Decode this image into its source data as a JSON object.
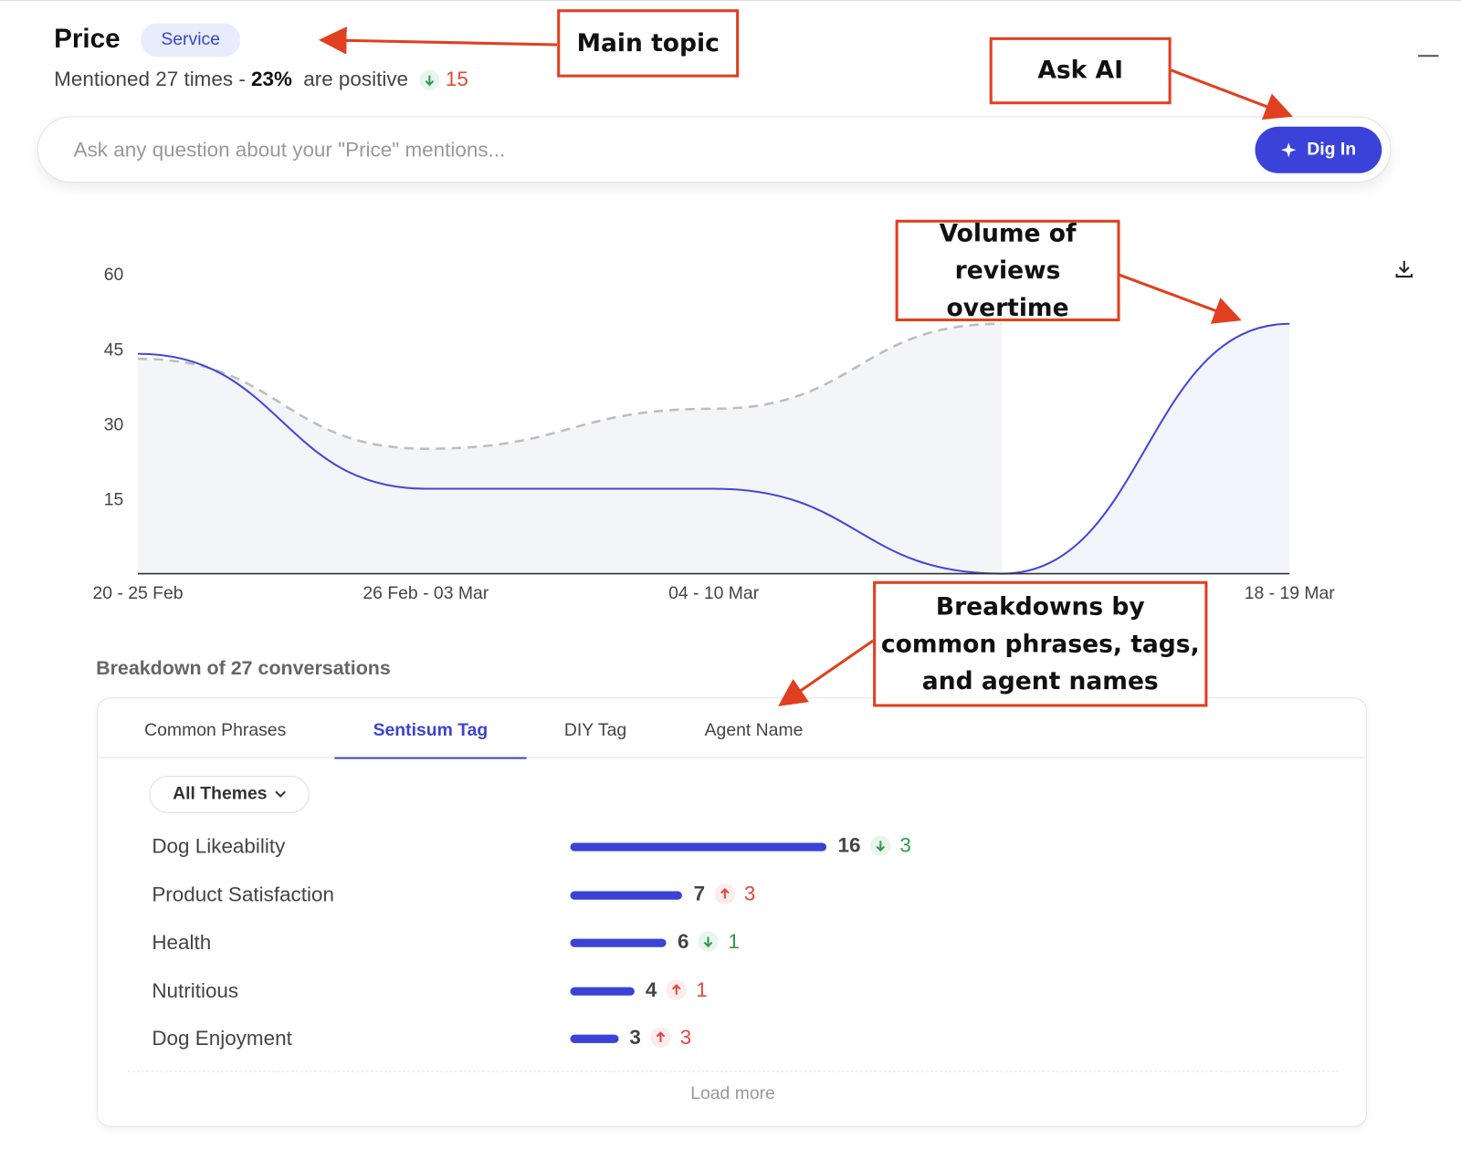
{
  "header": {
    "title": "Price",
    "tag": "Service",
    "mentions": "Mentioned 27 times - ",
    "positive_share": "23%",
    "positive_text": "are positive",
    "change": 15,
    "change_direction": "down"
  },
  "search": {
    "placeholder": "Ask any question about your \"Price\" mentions...",
    "button": "Dig In"
  },
  "chart_data": {
    "type": "line",
    "categories": [
      "20 - 25 Feb",
      "26 Feb - 03 Mar",
      "04 - 10 Mar",
      null,
      "18 - 19 Mar"
    ],
    "series": [
      {
        "color": "#4346d6",
        "style": "solid",
        "values": [
          44,
          17,
          17,
          0,
          50
        ]
      },
      {
        "color": "#bdbdbd",
        "style": "dashed",
        "values": [
          43,
          25,
          33,
          50,
          null
        ]
      }
    ],
    "ylim": [
      0,
      60
    ],
    "yticks": [
      15,
      30,
      45,
      60
    ],
    "grid": false
  },
  "breakdown": {
    "title": "Breakdown of 27 conversations",
    "tabs": [
      "Common Phrases",
      "Sentisum Tag",
      "DIY Tag",
      "Agent Name"
    ],
    "active_tab": 1,
    "filter": "All Themes",
    "rows": [
      {
        "label": "Dog Likeability",
        "value": 16,
        "change": 3,
        "direction": "down"
      },
      {
        "label": "Product Satisfaction",
        "value": 7,
        "change": 3,
        "direction": "up"
      },
      {
        "label": "Health",
        "value": 6,
        "change": 1,
        "direction": "down"
      },
      {
        "label": "Nutritious",
        "value": 4,
        "change": 1,
        "direction": "up"
      },
      {
        "label": "Dog Enjoyment",
        "value": 3,
        "change": 3,
        "direction": "up"
      }
    ],
    "load_more": "Load more"
  },
  "annotations": [
    "Main topic",
    "Ask AI",
    "Volume of reviews overtime",
    "Breakdowns by common phrases, tags, and agent names"
  ]
}
